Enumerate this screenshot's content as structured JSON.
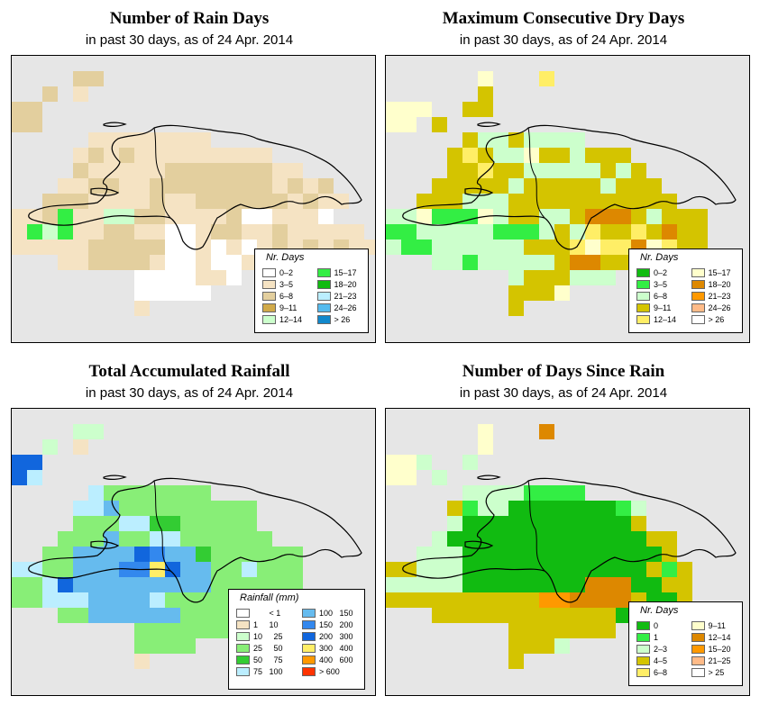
{
  "colors": {
    "background": "#e6e6e6",
    "nodata": "#e6e6e6"
  },
  "panels": [
    {
      "id": "rain-days",
      "title": "Number of Rain Days",
      "subtitle": "in past 30 days, as of  24 Apr. 2014",
      "legend": {
        "title": "Nr. Days",
        "items": [
          {
            "label": "0–2",
            "color": "#ffffff"
          },
          {
            "label": "3–5",
            "color": "#f5e3c3"
          },
          {
            "label": "6–8",
            "color": "#e3cf9e"
          },
          {
            "label": "9–11",
            "color": "#d1aa4a"
          },
          {
            "label": "12–14",
            "color": "#ccffcc"
          },
          {
            "label": "15–17",
            "color": "#33ee44"
          },
          {
            "label": "18–20",
            "color": "#11bb11"
          },
          {
            "label": "21–23",
            "color": "#bbeeff"
          },
          {
            "label": "24–26",
            "color": "#55bbee"
          },
          {
            "label": "> 26",
            "color": "#1188cc"
          }
        ]
      }
    },
    {
      "id": "max-dry-days",
      "title": "Maximum Consecutive Dry Days",
      "subtitle": "in past 30 days, as of  24 Apr. 2014",
      "legend": {
        "title": "Nr. Days",
        "items": [
          {
            "label": "0–2",
            "color": "#11bb11"
          },
          {
            "label": "3–5",
            "color": "#33ee44"
          },
          {
            "label": "6–8",
            "color": "#ccffcc"
          },
          {
            "label": "9–11",
            "color": "#d4c400"
          },
          {
            "label": "12–14",
            "color": "#ffee66"
          },
          {
            "label": "15–17",
            "color": "#ffffcc"
          },
          {
            "label": "18–20",
            "color": "#dd8800"
          },
          {
            "label": "21–23",
            "color": "#ff9900"
          },
          {
            "label": "24–26",
            "color": "#ffbb88"
          },
          {
            "label": "> 26",
            "color": "#ffffff"
          }
        ]
      }
    },
    {
      "id": "total-rainfall",
      "title": "Total Accumulated Rainfall",
      "subtitle": "in past 30 days, as of  24 Apr. 2014",
      "legend": {
        "title": "Rainfall (mm)",
        "items": [
          {
            "label": "       < 1",
            "color": "#ffffff"
          },
          {
            "label": "1     10",
            "color": "#f5e3c3"
          },
          {
            "label": "10     25",
            "color": "#ccffcc"
          },
          {
            "label": "25     50",
            "color": "#88ee77"
          },
          {
            "label": "50     75",
            "color": "#33cc33"
          },
          {
            "label": "75   100",
            "color": "#bbeeff"
          },
          {
            "label": "100   150",
            "color": "#66bbee"
          },
          {
            "label": "150   200",
            "color": "#3388ee"
          },
          {
            "label": "200   300",
            "color": "#1166dd"
          },
          {
            "label": "300   400",
            "color": "#ffee66"
          },
          {
            "label": "400   600",
            "color": "#ff9900"
          },
          {
            "label": "> 600",
            "color": "#ff3300"
          }
        ]
      }
    },
    {
      "id": "days-since-rain",
      "title": "Number of Days Since Rain",
      "subtitle": "in past 30 days, as of  24 Apr. 2014",
      "legend": {
        "title": "Nr. Days",
        "items": [
          {
            "label": "0",
            "color": "#11bb11"
          },
          {
            "label": "1",
            "color": "#33ee44"
          },
          {
            "label": "2–3",
            "color": "#ccffcc"
          },
          {
            "label": "4–5",
            "color": "#d4c400"
          },
          {
            "label": "6–8",
            "color": "#ffee66"
          },
          {
            "label": "9–11",
            "color": "#ffffcc"
          },
          {
            "label": "12–14",
            "color": "#dd8800"
          },
          {
            "label": "15–20",
            "color": "#ff9900"
          },
          {
            "label": "21–25",
            "color": "#ffbb88"
          },
          {
            "label": "> 25",
            "color": "#ffffff"
          }
        ]
      }
    }
  ],
  "grids": {
    "rain-days": [
      "........................",
      "....22..................",
      "..2.1...................",
      "22.....................",
      "22.......................",
      ".....11111111.........",
      "....1212111111111.......",
      "....211111222222211.....",
      "...112211222222221212...",
      "..22211112112222221211..",
      "112511442211112001110...",
      "15451122110012211211111.",
      "111112222200101012121211",
      "...1122221001001111.....",
      "........0000110.........",
      "........00000...........",
      "........1...............",
      "........................",
      "........................",
      ""
    ],
    "max-dry-days": [
      "........................",
      "......5...4.............",
      "......3.................",
      "555..33..................",
      "55.3.....................",
      ".....32232222...........",
      "....343225332333........",
      "....3343322222323.......",
      "...333332333332333......",
      "..33322233333333333.....",
      "225111523322366632333...",
      "112222211123243343633...",
      "211222222333454465433...",
      "...22122222366335.......",
      "........2333222.........",
      "........3335............",
      "........3...............",
      "........................",
      "........................",
      ""
    ],
    "total-rainfall": [
      "........................",
      "....22..................",
      "..2.1...................",
      "88.....................",
      "85.......................",
      ".....53333333.........",
      "....556333333333.......",
      "....333554433333.......",
      "...33363355333333.......",
      "..33666687664333333.....",
      "5533666779866335333....",
      "3358666666666333333....",
      "33555666653333333333....",
      "...3366666633333.....",
      "........3333333.........",
      "........3333............",
      "........1...............",
      "........................",
      "........................",
      ""
    ],
    "days-since-rain": [
      "........................",
      "......5...6.............",
      "......5.................",
      "552..2...................",
      "55.2.....................",
      ".....22221111...........",
      "....3122000000012.......",
      "....2000000000003.......",
      "...2000000000000033.....",
      "..22200000000000003.....",
      "33222000000000000313....",
      "22222000000006660033....",
      "33333333337766663003....",
      "...33333333333300.......",
      "........3333333.........",
      "........3332............",
      "........3...............",
      "........................",
      "........................",
      ""
    ]
  }
}
